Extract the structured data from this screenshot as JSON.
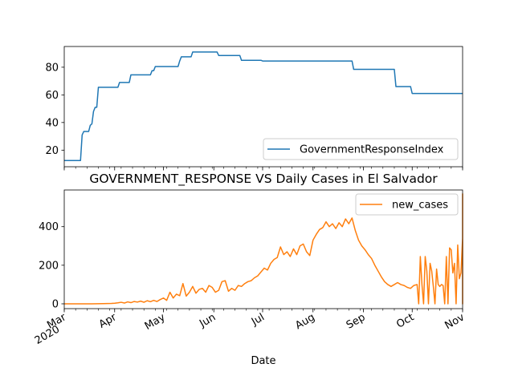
{
  "chart_data": [
    {
      "type": "line",
      "title": "",
      "xlabel": "",
      "ylabel": "",
      "ylim": [
        8,
        95
      ],
      "yticks": [
        20,
        40,
        60,
        80
      ],
      "legend_position": "lower-right",
      "grid": false,
      "series": [
        {
          "name": "GovernmentResponseIndex",
          "color": "#1f77b4",
          "points": [
            [
              "2020-03-01",
              12.5
            ],
            [
              "2020-03-11",
              12.5
            ],
            [
              "2020-03-12",
              31.0
            ],
            [
              "2020-03-13",
              33.5
            ],
            [
              "2020-03-16",
              33.5
            ],
            [
              "2020-03-17",
              38.0
            ],
            [
              "2020-03-18",
              39.0
            ],
            [
              "2020-03-19",
              48.0
            ],
            [
              "2020-03-20",
              51.0
            ],
            [
              "2020-03-21",
              51.0
            ],
            [
              "2020-03-22",
              65.5
            ],
            [
              "2020-04-03",
              65.5
            ],
            [
              "2020-04-04",
              69.0
            ],
            [
              "2020-04-10",
              69.0
            ],
            [
              "2020-04-11",
              74.5
            ],
            [
              "2020-04-23",
              74.5
            ],
            [
              "2020-04-24",
              77.5
            ],
            [
              "2020-04-25",
              77.5
            ],
            [
              "2020-04-26",
              80.5
            ],
            [
              "2020-05-10",
              80.5
            ],
            [
              "2020-05-11",
              84.5
            ],
            [
              "2020-05-12",
              87.5
            ],
            [
              "2020-05-18",
              87.5
            ],
            [
              "2020-05-19",
              91.0
            ],
            [
              "2020-06-03",
              91.0
            ],
            [
              "2020-06-04",
              88.5
            ],
            [
              "2020-06-17",
              88.5
            ],
            [
              "2020-06-18",
              85.0
            ],
            [
              "2020-06-30",
              85.0
            ],
            [
              "2020-07-01",
              84.5
            ],
            [
              "2020-08-25",
              84.5
            ],
            [
              "2020-08-26",
              78.5
            ],
            [
              "2020-09-20",
              78.5
            ],
            [
              "2020-09-21",
              66.0
            ],
            [
              "2020-09-30",
              66.0
            ],
            [
              "2020-10-01",
              61.0
            ],
            [
              "2020-11-01",
              61.0
            ]
          ]
        }
      ]
    },
    {
      "type": "line",
      "title": "GOVERNMENT_RESPONSE VS Daily Cases in El Salvador",
      "xlabel": "Date",
      "ylabel": "",
      "ylim": [
        -25,
        590
      ],
      "yticks": [
        0,
        200,
        400
      ],
      "xlim": [
        "2020-03-01",
        "2020-11-01"
      ],
      "xticks": [
        {
          "date": "2020-03-01",
          "label": "Mar",
          "sublabel": "2020"
        },
        {
          "date": "2020-04-01",
          "label": "Apr"
        },
        {
          "date": "2020-05-01",
          "label": "May"
        },
        {
          "date": "2020-06-01",
          "label": "Jun"
        },
        {
          "date": "2020-07-01",
          "label": "Jul"
        },
        {
          "date": "2020-08-01",
          "label": "Aug"
        },
        {
          "date": "2020-09-01",
          "label": "Sep"
        },
        {
          "date": "2020-10-01",
          "label": "Oct"
        },
        {
          "date": "2020-11-01",
          "label": "Nov"
        }
      ],
      "legend_position": "upper-right",
      "grid": false,
      "series": [
        {
          "name": "new_cases",
          "color": "#ff7f0e",
          "points": [
            [
              "2020-03-01",
              0
            ],
            [
              "2020-03-18",
              0
            ],
            [
              "2020-03-25",
              1
            ],
            [
              "2020-03-30",
              2
            ],
            [
              "2020-04-01",
              3
            ],
            [
              "2020-04-03",
              5
            ],
            [
              "2020-04-05",
              8
            ],
            [
              "2020-04-07",
              4
            ],
            [
              "2020-04-09",
              10
            ],
            [
              "2020-04-11",
              6
            ],
            [
              "2020-04-13",
              12
            ],
            [
              "2020-04-15",
              9
            ],
            [
              "2020-04-17",
              14
            ],
            [
              "2020-04-19",
              8
            ],
            [
              "2020-04-21",
              16
            ],
            [
              "2020-04-23",
              11
            ],
            [
              "2020-04-25",
              18
            ],
            [
              "2020-04-27",
              12
            ],
            [
              "2020-04-29",
              22
            ],
            [
              "2020-05-01",
              30
            ],
            [
              "2020-05-03",
              18
            ],
            [
              "2020-05-05",
              60
            ],
            [
              "2020-05-07",
              30
            ],
            [
              "2020-05-09",
              50
            ],
            [
              "2020-05-11",
              42
            ],
            [
              "2020-05-13",
              105
            ],
            [
              "2020-05-15",
              40
            ],
            [
              "2020-05-17",
              60
            ],
            [
              "2020-05-19",
              90
            ],
            [
              "2020-05-21",
              55
            ],
            [
              "2020-05-23",
              75
            ],
            [
              "2020-05-25",
              80
            ],
            [
              "2020-05-27",
              60
            ],
            [
              "2020-05-29",
              95
            ],
            [
              "2020-05-31",
              85
            ],
            [
              "2020-06-02",
              60
            ],
            [
              "2020-06-04",
              70
            ],
            [
              "2020-06-06",
              115
            ],
            [
              "2020-06-08",
              120
            ],
            [
              "2020-06-10",
              65
            ],
            [
              "2020-06-12",
              80
            ],
            [
              "2020-06-14",
              70
            ],
            [
              "2020-06-16",
              95
            ],
            [
              "2020-06-18",
              90
            ],
            [
              "2020-06-20",
              105
            ],
            [
              "2020-06-22",
              115
            ],
            [
              "2020-06-24",
              120
            ],
            [
              "2020-06-26",
              135
            ],
            [
              "2020-06-28",
              145
            ],
            [
              "2020-06-30",
              165
            ],
            [
              "2020-07-02",
              185
            ],
            [
              "2020-07-04",
              175
            ],
            [
              "2020-07-06",
              210
            ],
            [
              "2020-07-08",
              230
            ],
            [
              "2020-07-10",
              240
            ],
            [
              "2020-07-12",
              295
            ],
            [
              "2020-07-14",
              255
            ],
            [
              "2020-07-16",
              270
            ],
            [
              "2020-07-18",
              245
            ],
            [
              "2020-07-20",
              285
            ],
            [
              "2020-07-22",
              255
            ],
            [
              "2020-07-24",
              300
            ],
            [
              "2020-07-26",
              310
            ],
            [
              "2020-07-28",
              270
            ],
            [
              "2020-07-30",
              250
            ],
            [
              "2020-08-01",
              330
            ],
            [
              "2020-08-03",
              360
            ],
            [
              "2020-08-05",
              385
            ],
            [
              "2020-08-07",
              395
            ],
            [
              "2020-08-09",
              425
            ],
            [
              "2020-08-11",
              400
            ],
            [
              "2020-08-13",
              415
            ],
            [
              "2020-08-15",
              390
            ],
            [
              "2020-08-17",
              420
            ],
            [
              "2020-08-19",
              400
            ],
            [
              "2020-08-21",
              440
            ],
            [
              "2020-08-23",
              415
            ],
            [
              "2020-08-25",
              445
            ],
            [
              "2020-08-27",
              380
            ],
            [
              "2020-08-29",
              330
            ],
            [
              "2020-08-31",
              300
            ],
            [
              "2020-09-02",
              280
            ],
            [
              "2020-09-04",
              255
            ],
            [
              "2020-09-06",
              235
            ],
            [
              "2020-09-08",
              200
            ],
            [
              "2020-09-10",
              170
            ],
            [
              "2020-09-12",
              140
            ],
            [
              "2020-09-14",
              115
            ],
            [
              "2020-09-16",
              100
            ],
            [
              "2020-09-18",
              90
            ],
            [
              "2020-09-20",
              100
            ],
            [
              "2020-09-22",
              110
            ],
            [
              "2020-09-24",
              100
            ],
            [
              "2020-09-26",
              95
            ],
            [
              "2020-09-28",
              85
            ],
            [
              "2020-09-30",
              80
            ],
            [
              "2020-10-02",
              95
            ],
            [
              "2020-10-04",
              100
            ],
            [
              "2020-10-05",
              0
            ],
            [
              "2020-10-06",
              245
            ],
            [
              "2020-10-07",
              100
            ],
            [
              "2020-10-08",
              0
            ],
            [
              "2020-10-09",
              245
            ],
            [
              "2020-10-10",
              170
            ],
            [
              "2020-10-11",
              0
            ],
            [
              "2020-10-12",
              210
            ],
            [
              "2020-10-13",
              170
            ],
            [
              "2020-10-14",
              90
            ],
            [
              "2020-10-15",
              0
            ],
            [
              "2020-10-16",
              180
            ],
            [
              "2020-10-17",
              100
            ],
            [
              "2020-10-18",
              90
            ],
            [
              "2020-10-19",
              100
            ],
            [
              "2020-10-20",
              95
            ],
            [
              "2020-10-21",
              0
            ],
            [
              "2020-10-22",
              245
            ],
            [
              "2020-10-23",
              0
            ],
            [
              "2020-10-24",
              290
            ],
            [
              "2020-10-25",
              280
            ],
            [
              "2020-10-26",
              160
            ],
            [
              "2020-10-27",
              210
            ],
            [
              "2020-10-28",
              0
            ],
            [
              "2020-10-29",
              305
            ],
            [
              "2020-10-30",
              130
            ],
            [
              "2020-10-31",
              160
            ],
            [
              "2020-11-01",
              340
            ],
            [
              "2020-11-01",
              0
            ],
            [
              "2020-11-01",
              570
            ],
            [
              "2020-11-01",
              0
            ]
          ]
        }
      ]
    }
  ]
}
